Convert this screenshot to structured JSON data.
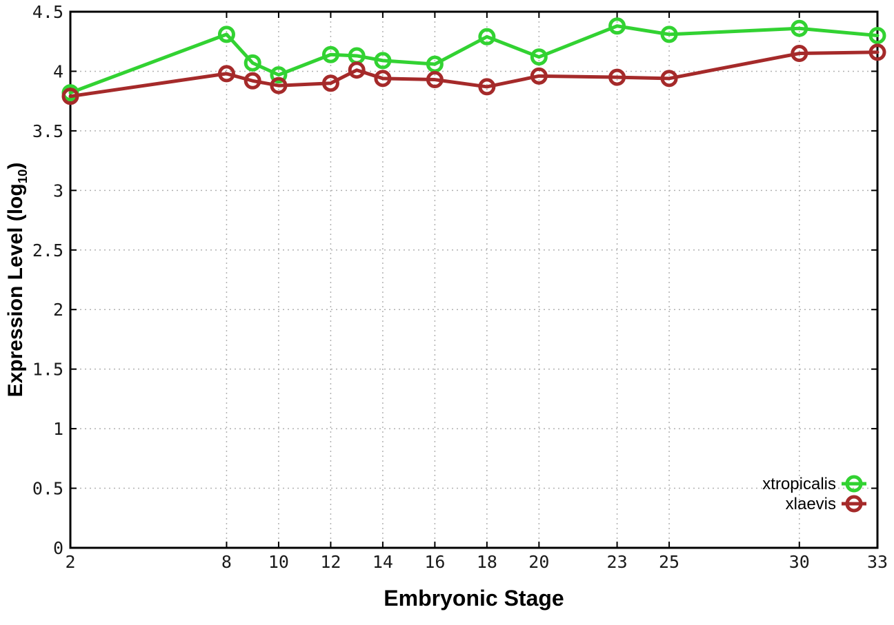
{
  "chart_data": {
    "type": "line",
    "title": "",
    "xlabel": "Embryonic Stage",
    "ylabel": {
      "prefix": "Expression Level (log",
      "sub": "10",
      "suffix": ")"
    },
    "x": [
      2,
      8,
      9,
      10,
      12,
      13,
      14,
      16,
      18,
      20,
      23,
      25,
      30,
      33
    ],
    "series": [
      {
        "name": "xtropicalis",
        "color": "#32d232",
        "values": [
          3.82,
          4.31,
          4.07,
          3.97,
          4.14,
          4.13,
          4.09,
          4.06,
          4.29,
          4.12,
          4.38,
          4.31,
          4.36,
          4.3
        ]
      },
      {
        "name": "xlaevis",
        "color": "#a52a2a",
        "values": [
          3.79,
          3.98,
          3.92,
          3.88,
          3.9,
          4.01,
          3.94,
          3.93,
          3.87,
          3.96,
          3.95,
          3.94,
          4.15,
          4.16
        ]
      }
    ],
    "xlim": [
      2,
      33
    ],
    "ylim": [
      0,
      4.5
    ],
    "x_ticks": [
      2,
      8,
      10,
      12,
      14,
      16,
      18,
      20,
      23,
      25,
      30,
      33
    ],
    "y_ticks": [
      0,
      0.5,
      1,
      1.5,
      2,
      2.5,
      3,
      3.5,
      4,
      4.5
    ],
    "grid": true,
    "legend": {
      "position": "inside-right-bottom",
      "entries": [
        "xtropicalis",
        "xlaevis"
      ]
    },
    "colors": {
      "background": "#ffffff",
      "axis": "#000000",
      "grid": "#b0b0b0",
      "tick_text": "#1a1a1a"
    }
  }
}
